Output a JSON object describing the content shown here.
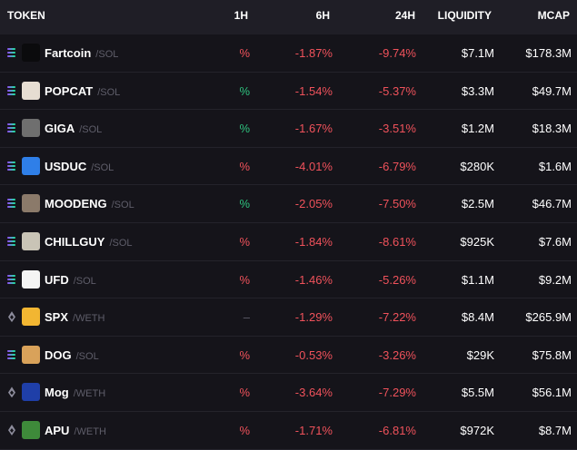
{
  "header": {
    "token": "TOKEN",
    "h1": "1H",
    "h6": "6H",
    "h24": "24H",
    "liquidity": "LIQUIDITY",
    "mcap": "MCAP"
  },
  "rows": [
    {
      "symbol": "Fartcoin",
      "pair": "/SOL",
      "chain": "sol",
      "h1": "%",
      "h1_sign": "neg",
      "h6": "-1.87%",
      "h24": "-9.74%",
      "liquidity": "$7.1M",
      "mcap": "$178.3M",
      "avatar_color": "#0b0b0d",
      "icon": "fartcoin-logo-icon"
    },
    {
      "symbol": "POPCAT",
      "pair": "/SOL",
      "chain": "sol",
      "h1": "%",
      "h1_sign": "pos",
      "h6": "-1.54%",
      "h24": "-5.37%",
      "liquidity": "$3.3M",
      "mcap": "$49.7M",
      "avatar_color": "#e6ddd2",
      "icon": "popcat-logo-icon"
    },
    {
      "symbol": "GIGA",
      "pair": "/SOL",
      "chain": "sol",
      "h1": "%",
      "h1_sign": "pos",
      "h6": "-1.67%",
      "h24": "-3.51%",
      "liquidity": "$1.2M",
      "mcap": "$18.3M",
      "avatar_color": "#6f6f6f",
      "icon": "giga-logo-icon"
    },
    {
      "symbol": "USDUC",
      "pair": "/SOL",
      "chain": "sol",
      "h1": "%",
      "h1_sign": "neg",
      "h6": "-4.01%",
      "h24": "-6.79%",
      "liquidity": "$280K",
      "mcap": "$1.6M",
      "avatar_color": "#2f7fe8",
      "icon": "usduc-logo-icon"
    },
    {
      "symbol": "MOODENG",
      "pair": "/SOL",
      "chain": "sol",
      "h1": "%",
      "h1_sign": "pos",
      "h6": "-2.05%",
      "h24": "-7.50%",
      "liquidity": "$2.5M",
      "mcap": "$46.7M",
      "avatar_color": "#8b7a6a",
      "icon": "moodeng-logo-icon"
    },
    {
      "symbol": "CHILLGUY",
      "pair": "/SOL",
      "chain": "sol",
      "h1": "%",
      "h1_sign": "neg",
      "h6": "-1.84%",
      "h24": "-8.61%",
      "liquidity": "$925K",
      "mcap": "$7.6M",
      "avatar_color": "#c9c4b6",
      "icon": "chillguy-logo-icon"
    },
    {
      "symbol": "UFD",
      "pair": "/SOL",
      "chain": "sol",
      "h1": "%",
      "h1_sign": "neg",
      "h6": "-1.46%",
      "h24": "-5.26%",
      "liquidity": "$1.1M",
      "mcap": "$9.2M",
      "avatar_color": "#f4f4f4",
      "icon": "ufd-logo-icon"
    },
    {
      "symbol": "SPX",
      "pair": "/WETH",
      "chain": "eth",
      "h1": "–",
      "h1_sign": "neutral",
      "h6": "-1.29%",
      "h24": "-7.22%",
      "liquidity": "$8.4M",
      "mcap": "$265.9M",
      "avatar_color": "#f2b632",
      "icon": "spx-logo-icon"
    },
    {
      "symbol": "DOG",
      "pair": "/SOL",
      "chain": "sol",
      "h1": "%",
      "h1_sign": "neg",
      "h6": "-0.53%",
      "h24": "-3.26%",
      "liquidity": "$29K",
      "mcap": "$75.8M",
      "avatar_color": "#d9a25a",
      "icon": "dog-logo-icon"
    },
    {
      "symbol": "Mog",
      "pair": "/WETH",
      "chain": "eth",
      "h1": "%",
      "h1_sign": "neg",
      "h6": "-3.64%",
      "h24": "-7.29%",
      "liquidity": "$5.5M",
      "mcap": "$56.1M",
      "avatar_color": "#1f3fa8",
      "icon": "mog-logo-icon"
    },
    {
      "symbol": "APU",
      "pair": "/WETH",
      "chain": "eth",
      "h1": "%",
      "h1_sign": "neg",
      "h6": "-1.71%",
      "h24": "-6.81%",
      "liquidity": "$972K",
      "mcap": "$8.7M",
      "avatar_color": "#3e8a3a",
      "icon": "apu-logo-icon"
    }
  ],
  "colors": {
    "background": "#15141a",
    "header_bg": "#1f1e26",
    "negative": "#f0525b",
    "positive": "#2ec27e",
    "muted": "#5f5e6a"
  }
}
